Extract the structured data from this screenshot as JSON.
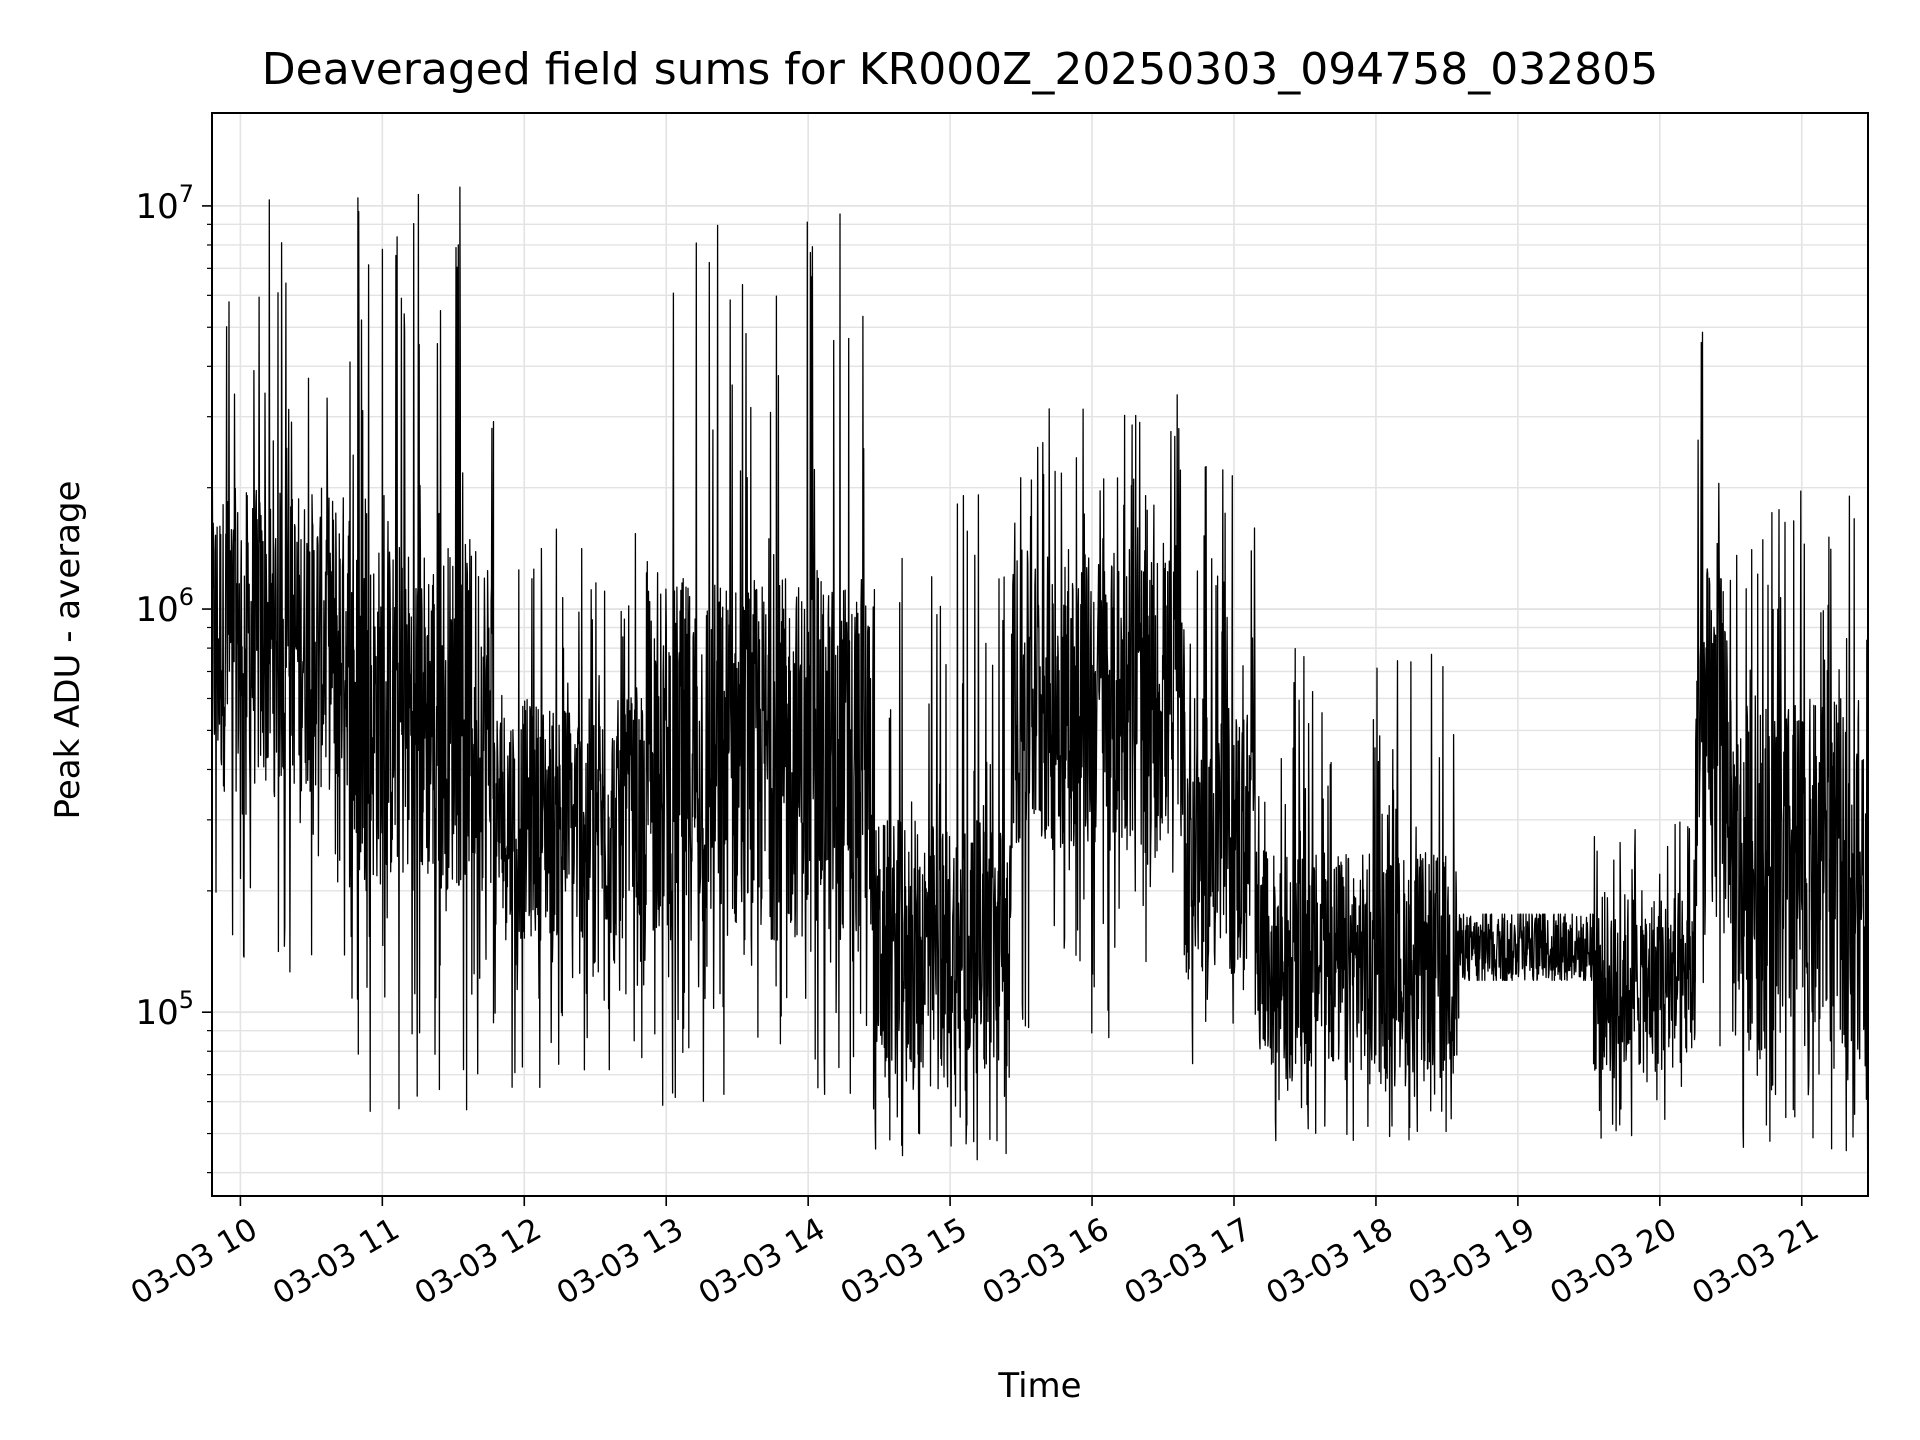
{
  "chart_data": {
    "type": "line",
    "title": "Deaveraged field sums for KR000Z_20250303_094758_032805",
    "xlabel": "Time",
    "ylabel": "Peak ADU - average",
    "x_axis": {
      "type": "time",
      "range": [
        "2025-03-03 09:48",
        "2025-03-03 21:28"
      ],
      "tick_values": [
        "2025-03-03 10:00",
        "2025-03-03 11:00",
        "2025-03-03 12:00",
        "2025-03-03 13:00",
        "2025-03-03 14:00",
        "2025-03-03 15:00",
        "2025-03-03 16:00",
        "2025-03-03 17:00",
        "2025-03-03 18:00",
        "2025-03-03 19:00",
        "2025-03-03 20:00",
        "2025-03-03 21:00"
      ],
      "tick_labels": [
        "03-03 10",
        "03-03 11",
        "03-03 12",
        "03-03 13",
        "03-03 14",
        "03-03 15",
        "03-03 16",
        "03-03 17",
        "03-03 18",
        "03-03 19",
        "03-03 20",
        "03-03 21"
      ]
    },
    "y_axis": {
      "scale": "log",
      "range": [
        35000,
        17000000
      ],
      "tick_values": [
        100000,
        1000000,
        10000000
      ],
      "tick_labels": [
        {
          "base": "10",
          "exp": "5"
        },
        {
          "base": "10",
          "exp": "6"
        },
        {
          "base": "10",
          "exp": "7"
        }
      ]
    },
    "grid": true,
    "series": [
      {
        "color": "#000000",
        "segments": [
          {
            "x": [
              "2025-03-03 09:48",
              "2025-03-03 10:46"
            ],
            "band": [
              120000,
              10500000
            ],
            "typical": [
              350000,
              2000000
            ]
          },
          {
            "x": [
              "2025-03-03 10:46",
              "2025-03-03 11:47"
            ],
            "band": [
              55000,
              12500000
            ],
            "typical": [
              200000,
              1500000
            ]
          },
          {
            "x": [
              "2025-03-03 11:47",
              "2025-03-03 12:52"
            ],
            "band": [
              65000,
              1600000
            ],
            "typical": [
              150000,
              600000
            ]
          },
          {
            "x": [
              "2025-03-03 12:52",
              "2025-03-03 14:28"
            ],
            "band": [
              55000,
              11000000
            ],
            "typical": [
              150000,
              1200000
            ]
          },
          {
            "x": [
              "2025-03-03 14:28",
              "2025-03-03 15:26"
            ],
            "band": [
              43000,
              2500000
            ],
            "typical": [
              70000,
              300000
            ]
          },
          {
            "x": [
              "2025-03-03 15:26",
              "2025-03-03 16:39"
            ],
            "band": [
              80000,
              3400000
            ],
            "typical": [
              250000,
              1400000
            ]
          },
          {
            "x": [
              "2025-03-03 16:39",
              "2025-03-03 17:10"
            ],
            "band": [
              60000,
              2300000
            ],
            "typical": [
              120000,
              600000
            ]
          },
          {
            "x": [
              "2025-03-03 17:10",
              "2025-03-03 18:35"
            ],
            "band": [
              48000,
              800000
            ],
            "typical": [
              70000,
              250000
            ]
          },
          {
            "x": [
              "2025-03-03 18:35",
              "2025-03-03 19:32"
            ],
            "band": [
              120000,
              175000
            ],
            "typical": [
              120000,
              175000
            ]
          },
          {
            "x": [
              "2025-03-03 19:32",
              "2025-03-03 20:15"
            ],
            "band": [
              48000,
              300000
            ],
            "typical": [
              70000,
              200000
            ]
          },
          {
            "x": [
              "2025-03-03 20:15",
              "2025-03-03 20:30"
            ],
            "band": [
              60000,
              6000000
            ],
            "typical": [
              150000,
              1300000
            ]
          },
          {
            "x": [
              "2025-03-03 20:30",
              "2025-03-03 21:28"
            ],
            "band": [
              45000,
              2000000
            ],
            "typical": [
              80000,
              600000
            ]
          }
        ]
      }
    ]
  }
}
